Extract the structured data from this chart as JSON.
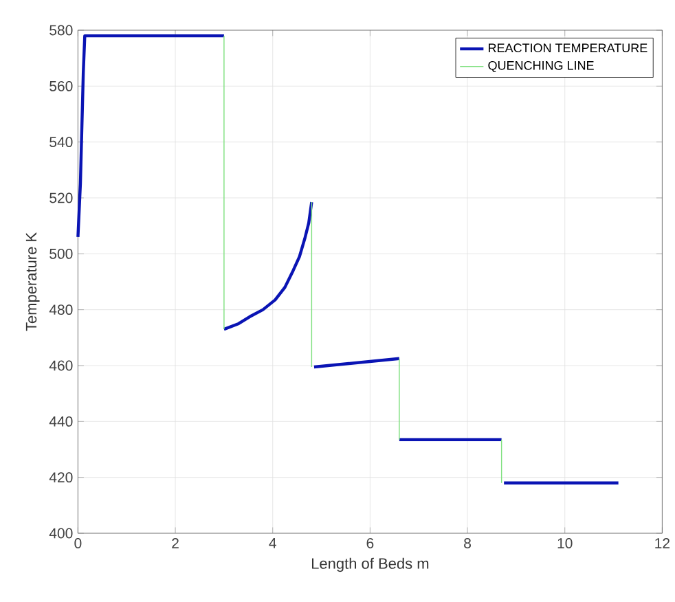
{
  "chart_data": {
    "type": "line",
    "xlabel": "Length of Beds m",
    "ylabel": "Temperature K",
    "xlim": [
      0,
      12
    ],
    "xticks": [
      0,
      2,
      4,
      6,
      8,
      10,
      12
    ],
    "ylim": [
      400,
      580
    ],
    "yticks": [
      400,
      420,
      440,
      460,
      480,
      500,
      520,
      540,
      560,
      580
    ],
    "grid": true,
    "legend": "top right",
    "marker": "none",
    "line_style": "solid",
    "series": [
      {
        "name": "REACTION TEMPERATURE",
        "color": "#0a14b4",
        "x": [
          0,
          0.05,
          0.08,
          0.11,
          0.14,
          3.0,
          null,
          3.0,
          3.3,
          3.53,
          3.8,
          4.05,
          4.25,
          4.42,
          4.55,
          4.66,
          4.74,
          4.8,
          null,
          4.85,
          6.6,
          null,
          6.6,
          8.7,
          null,
          8.75,
          11.1
        ],
        "values": [
          506,
          525,
          545,
          565,
          578,
          578,
          null,
          473,
          475,
          477.5,
          480,
          483.5,
          488,
          494,
          499,
          505.5,
          511,
          518.5,
          null,
          459.5,
          462.5,
          null,
          433.5,
          433.5,
          null,
          418,
          418
        ]
      },
      {
        "name": "QUENCHING LINE",
        "color": "#7ee07e",
        "x": [
          3.0,
          3.0,
          null,
          4.8,
          4.8,
          null,
          6.6,
          6.6,
          null,
          8.7,
          8.7
        ],
        "values": [
          578,
          473,
          null,
          518.5,
          459.5,
          null,
          462.5,
          433.5,
          null,
          433.5,
          418
        ]
      }
    ]
  }
}
